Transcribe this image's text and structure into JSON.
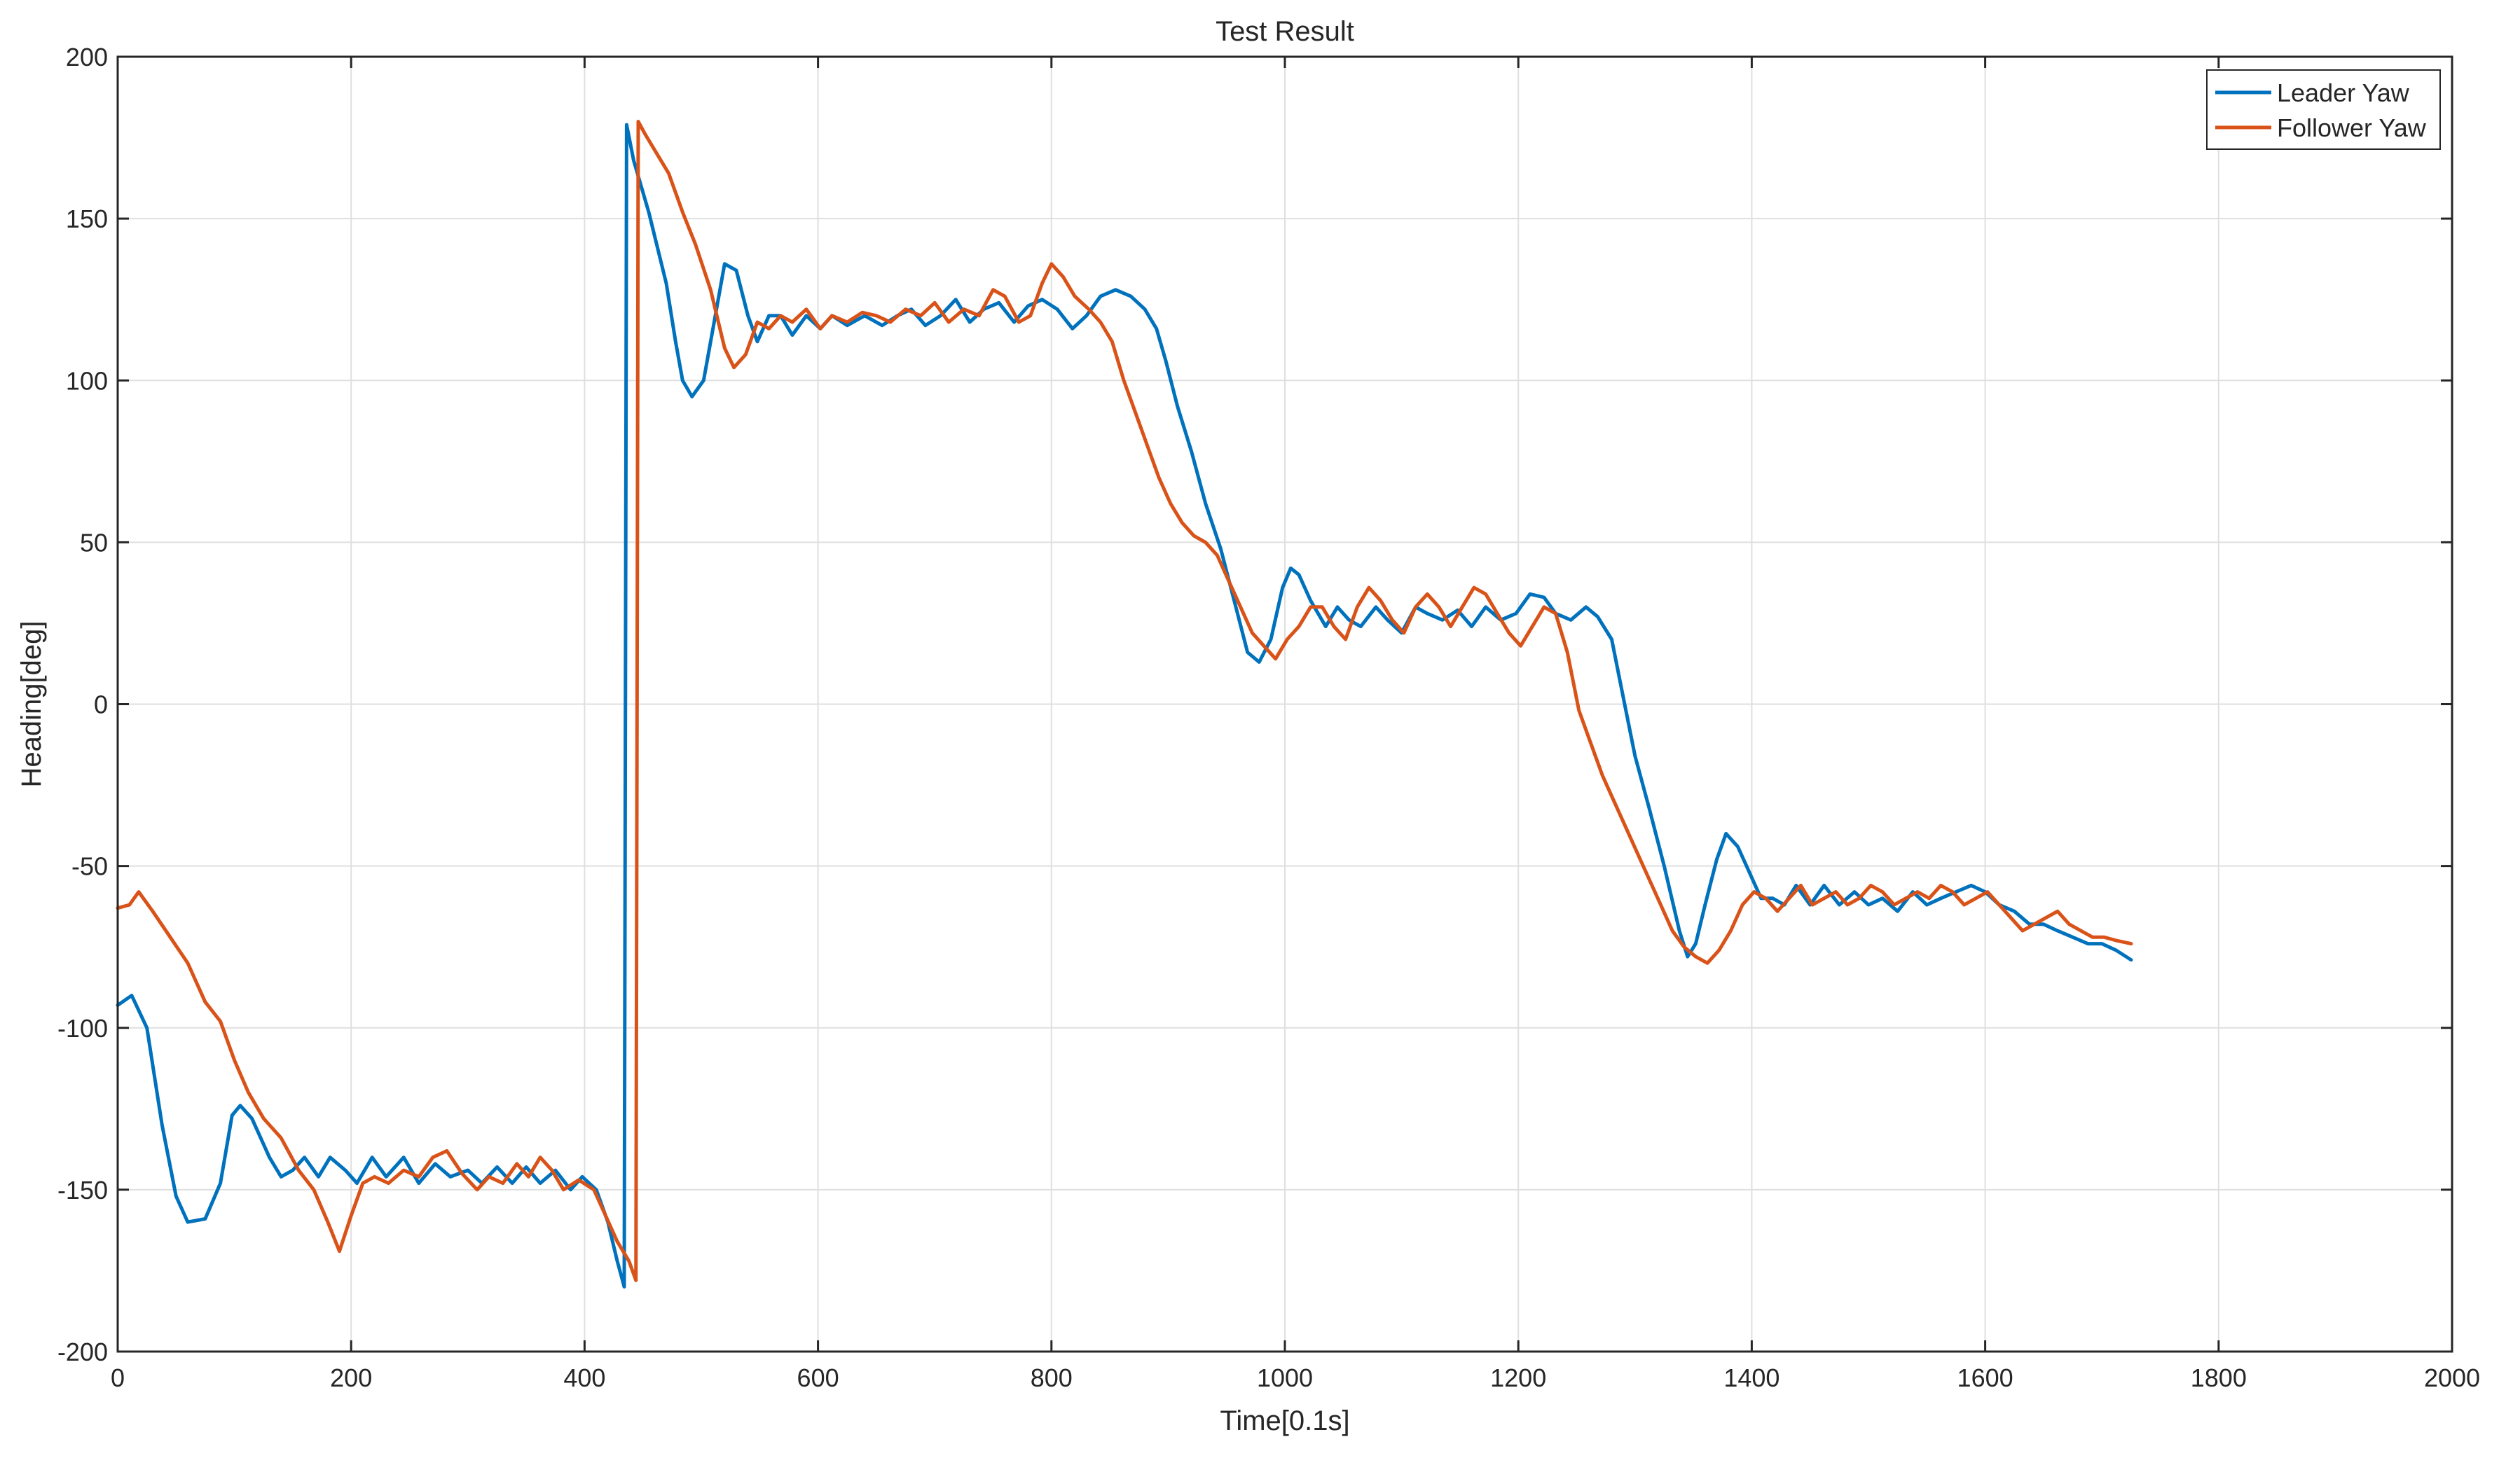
{
  "chart_data": {
    "type": "line",
    "title": "Test Result",
    "xlabel": "Time[0.1s]",
    "ylabel": "Heading[deg]",
    "xlim": [
      0,
      2000
    ],
    "ylim": [
      -200,
      200
    ],
    "xticks": [
      0,
      200,
      400,
      600,
      800,
      1000,
      1200,
      1400,
      1600,
      1800,
      2000
    ],
    "yticks": [
      -200,
      -150,
      -100,
      -50,
      0,
      50,
      100,
      150,
      200
    ],
    "xtick_labels": [
      "0",
      "200",
      "400",
      "600",
      "800",
      "1000",
      "1200",
      "1400",
      "1600",
      "1800",
      "2000"
    ],
    "ytick_labels": [
      "-200",
      "-150",
      "-100",
      "-50",
      "0",
      "50",
      "100",
      "150",
      "200"
    ],
    "grid": true,
    "legend_position": "top-right",
    "series": [
      {
        "name": "Leader Yaw",
        "color": "#0072BD",
        "points": [
          [
            0,
            -93
          ],
          [
            12,
            -90
          ],
          [
            25,
            -100
          ],
          [
            38,
            -130
          ],
          [
            50,
            -152
          ],
          [
            60,
            -160
          ],
          [
            75,
            -159
          ],
          [
            88,
            -148
          ],
          [
            98,
            -127
          ],
          [
            105,
            -124
          ],
          [
            115,
            -128
          ],
          [
            130,
            -140
          ],
          [
            140,
            -146
          ],
          [
            150,
            -144
          ],
          [
            160,
            -140
          ],
          [
            172,
            -146
          ],
          [
            182,
            -140
          ],
          [
            195,
            -144
          ],
          [
            205,
            -148
          ],
          [
            218,
            -140
          ],
          [
            230,
            -146
          ],
          [
            245,
            -140
          ],
          [
            258,
            -148
          ],
          [
            272,
            -142
          ],
          [
            285,
            -146
          ],
          [
            300,
            -144
          ],
          [
            312,
            -148
          ],
          [
            325,
            -143
          ],
          [
            338,
            -148
          ],
          [
            350,
            -143
          ],
          [
            362,
            -148
          ],
          [
            375,
            -144
          ],
          [
            388,
            -150
          ],
          [
            398,
            -146
          ],
          [
            410,
            -150
          ],
          [
            420,
            -160
          ],
          [
            428,
            -172
          ],
          [
            434,
            -180
          ],
          [
            436,
            179
          ],
          [
            442,
            168
          ],
          [
            455,
            152
          ],
          [
            470,
            130
          ],
          [
            478,
            112
          ],
          [
            484,
            100
          ],
          [
            492,
            95
          ],
          [
            502,
            100
          ],
          [
            512,
            120
          ],
          [
            520,
            136
          ],
          [
            530,
            134
          ],
          [
            540,
            120
          ],
          [
            548,
            112
          ],
          [
            558,
            120
          ],
          [
            568,
            120
          ],
          [
            578,
            114
          ],
          [
            590,
            120
          ],
          [
            602,
            116
          ],
          [
            612,
            120
          ],
          [
            625,
            117
          ],
          [
            640,
            120
          ],
          [
            655,
            117
          ],
          [
            668,
            120
          ],
          [
            680,
            122
          ],
          [
            692,
            117
          ],
          [
            705,
            120
          ],
          [
            718,
            125
          ],
          [
            730,
            118
          ],
          [
            742,
            122
          ],
          [
            755,
            124
          ],
          [
            768,
            118
          ],
          [
            780,
            123
          ],
          [
            792,
            125
          ],
          [
            805,
            122
          ],
          [
            818,
            116
          ],
          [
            830,
            120
          ],
          [
            842,
            126
          ],
          [
            855,
            128
          ],
          [
            868,
            126
          ],
          [
            880,
            122
          ],
          [
            890,
            116
          ],
          [
            898,
            106
          ],
          [
            908,
            92
          ],
          [
            920,
            78
          ],
          [
            932,
            62
          ],
          [
            945,
            48
          ],
          [
            958,
            30
          ],
          [
            968,
            16
          ],
          [
            978,
            13
          ],
          [
            988,
            20
          ],
          [
            998,
            36
          ],
          [
            1005,
            42
          ],
          [
            1012,
            40
          ],
          [
            1022,
            32
          ],
          [
            1035,
            24
          ],
          [
            1045,
            30
          ],
          [
            1055,
            26
          ],
          [
            1065,
            24
          ],
          [
            1078,
            30
          ],
          [
            1088,
            26
          ],
          [
            1100,
            22
          ],
          [
            1112,
            30
          ],
          [
            1122,
            28
          ],
          [
            1135,
            26
          ],
          [
            1148,
            29
          ],
          [
            1160,
            24
          ],
          [
            1172,
            30
          ],
          [
            1185,
            26
          ],
          [
            1198,
            28
          ],
          [
            1210,
            34
          ],
          [
            1222,
            33
          ],
          [
            1232,
            28
          ],
          [
            1245,
            26
          ],
          [
            1258,
            30
          ],
          [
            1268,
            27
          ],
          [
            1280,
            20
          ],
          [
            1290,
            2
          ],
          [
            1300,
            -16
          ],
          [
            1312,
            -32
          ],
          [
            1325,
            -50
          ],
          [
            1338,
            -70
          ],
          [
            1345,
            -78
          ],
          [
            1352,
            -74
          ],
          [
            1360,
            -62
          ],
          [
            1370,
            -48
          ],
          [
            1378,
            -40
          ],
          [
            1388,
            -44
          ],
          [
            1398,
            -52
          ],
          [
            1408,
            -60
          ],
          [
            1418,
            -60
          ],
          [
            1428,
            -62
          ],
          [
            1438,
            -56
          ],
          [
            1450,
            -62
          ],
          [
            1462,
            -56
          ],
          [
            1475,
            -62
          ],
          [
            1488,
            -58
          ],
          [
            1500,
            -62
          ],
          [
            1512,
            -60
          ],
          [
            1525,
            -64
          ],
          [
            1538,
            -58
          ],
          [
            1550,
            -62
          ],
          [
            1562,
            -60
          ],
          [
            1575,
            -58
          ],
          [
            1588,
            -56
          ],
          [
            1600,
            -58
          ],
          [
            1612,
            -62
          ],
          [
            1625,
            -64
          ],
          [
            1638,
            -68
          ],
          [
            1650,
            -68
          ],
          [
            1662,
            -70
          ],
          [
            1675,
            -72
          ],
          [
            1688,
            -74
          ],
          [
            1700,
            -74
          ],
          [
            1712,
            -76
          ],
          [
            1725,
            -79
          ]
        ]
      },
      {
        "name": "Follower Yaw",
        "color": "#D95319",
        "points": [
          [
            0,
            -63
          ],
          [
            10,
            -62
          ],
          [
            18,
            -58
          ],
          [
            30,
            -64
          ],
          [
            45,
            -72
          ],
          [
            60,
            -80
          ],
          [
            75,
            -92
          ],
          [
            88,
            -98
          ],
          [
            100,
            -110
          ],
          [
            112,
            -120
          ],
          [
            125,
            -128
          ],
          [
            140,
            -134
          ],
          [
            155,
            -144
          ],
          [
            168,
            -150
          ],
          [
            180,
            -160
          ],
          [
            190,
            -169
          ],
          [
            200,
            -158
          ],
          [
            210,
            -148
          ],
          [
            220,
            -146
          ],
          [
            232,
            -148
          ],
          [
            245,
            -144
          ],
          [
            258,
            -146
          ],
          [
            270,
            -140
          ],
          [
            282,
            -138
          ],
          [
            295,
            -145
          ],
          [
            308,
            -150
          ],
          [
            318,
            -146
          ],
          [
            330,
            -148
          ],
          [
            342,
            -142
          ],
          [
            352,
            -146
          ],
          [
            362,
            -140
          ],
          [
            372,
            -144
          ],
          [
            382,
            -150
          ],
          [
            395,
            -147
          ],
          [
            408,
            -150
          ],
          [
            418,
            -158
          ],
          [
            428,
            -166
          ],
          [
            438,
            -172
          ],
          [
            444,
            -178
          ],
          [
            446,
            180
          ],
          [
            452,
            176
          ],
          [
            462,
            170
          ],
          [
            472,
            164
          ],
          [
            484,
            152
          ],
          [
            495,
            142
          ],
          [
            508,
            128
          ],
          [
            520,
            110
          ],
          [
            528,
            104
          ],
          [
            538,
            108
          ],
          [
            548,
            118
          ],
          [
            558,
            116
          ],
          [
            568,
            120
          ],
          [
            578,
            118
          ],
          [
            590,
            122
          ],
          [
            602,
            116
          ],
          [
            612,
            120
          ],
          [
            625,
            118
          ],
          [
            638,
            121
          ],
          [
            650,
            120
          ],
          [
            662,
            118
          ],
          [
            675,
            122
          ],
          [
            688,
            120
          ],
          [
            700,
            124
          ],
          [
            712,
            118
          ],
          [
            725,
            122
          ],
          [
            738,
            120
          ],
          [
            750,
            128
          ],
          [
            760,
            126
          ],
          [
            772,
            118
          ],
          [
            782,
            120
          ],
          [
            792,
            130
          ],
          [
            800,
            136
          ],
          [
            810,
            132
          ],
          [
            820,
            126
          ],
          [
            832,
            122
          ],
          [
            842,
            118
          ],
          [
            852,
            112
          ],
          [
            862,
            100
          ],
          [
            872,
            90
          ],
          [
            882,
            80
          ],
          [
            892,
            70
          ],
          [
            902,
            62
          ],
          [
            912,
            56
          ],
          [
            922,
            52
          ],
          [
            932,
            50
          ],
          [
            942,
            46
          ],
          [
            952,
            38
          ],
          [
            962,
            30
          ],
          [
            972,
            22
          ],
          [
            982,
            18
          ],
          [
            992,
            14
          ],
          [
            1002,
            20
          ],
          [
            1012,
            24
          ],
          [
            1022,
            30
          ],
          [
            1032,
            30
          ],
          [
            1042,
            24
          ],
          [
            1052,
            20
          ],
          [
            1062,
            30
          ],
          [
            1072,
            36
          ],
          [
            1082,
            32
          ],
          [
            1092,
            26
          ],
          [
            1102,
            22
          ],
          [
            1112,
            30
          ],
          [
            1122,
            34
          ],
          [
            1132,
            30
          ],
          [
            1142,
            24
          ],
          [
            1152,
            30
          ],
          [
            1162,
            36
          ],
          [
            1172,
            34
          ],
          [
            1182,
            28
          ],
          [
            1192,
            22
          ],
          [
            1202,
            18
          ],
          [
            1212,
            24
          ],
          [
            1222,
            30
          ],
          [
            1232,
            28
          ],
          [
            1242,
            16
          ],
          [
            1252,
            -2
          ],
          [
            1262,
            -12
          ],
          [
            1272,
            -22
          ],
          [
            1282,
            -30
          ],
          [
            1292,
            -38
          ],
          [
            1302,
            -46
          ],
          [
            1312,
            -54
          ],
          [
            1322,
            -62
          ],
          [
            1332,
            -70
          ],
          [
            1342,
            -75
          ],
          [
            1352,
            -78
          ],
          [
            1362,
            -80
          ],
          [
            1372,
            -76
          ],
          [
            1382,
            -70
          ],
          [
            1392,
            -62
          ],
          [
            1402,
            -58
          ],
          [
            1412,
            -60
          ],
          [
            1422,
            -64
          ],
          [
            1432,
            -60
          ],
          [
            1442,
            -56
          ],
          [
            1452,
            -62
          ],
          [
            1462,
            -60
          ],
          [
            1472,
            -58
          ],
          [
            1482,
            -62
          ],
          [
            1492,
            -60
          ],
          [
            1502,
            -56
          ],
          [
            1512,
            -58
          ],
          [
            1522,
            -62
          ],
          [
            1532,
            -60
          ],
          [
            1542,
            -58
          ],
          [
            1552,
            -60
          ],
          [
            1562,
            -56
          ],
          [
            1572,
            -58
          ],
          [
            1582,
            -62
          ],
          [
            1592,
            -60
          ],
          [
            1602,
            -58
          ],
          [
            1612,
            -62
          ],
          [
            1622,
            -66
          ],
          [
            1632,
            -70
          ],
          [
            1642,
            -68
          ],
          [
            1652,
            -66
          ],
          [
            1662,
            -64
          ],
          [
            1672,
            -68
          ],
          [
            1682,
            -70
          ],
          [
            1692,
            -72
          ],
          [
            1702,
            -72
          ],
          [
            1712,
            -73
          ],
          [
            1725,
            -74
          ]
        ]
      }
    ]
  }
}
